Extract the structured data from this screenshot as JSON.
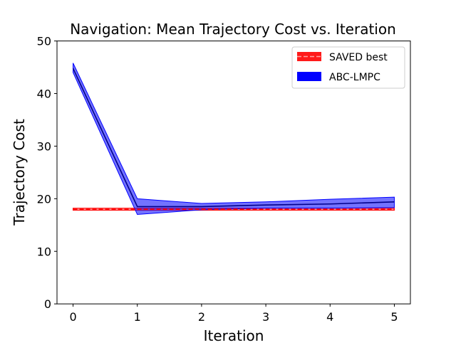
{
  "chart_data": {
    "type": "line",
    "title": "Navigation: Mean Trajectory Cost vs. Iteration",
    "xlabel": "Iteration",
    "ylabel": "Trajectory Cost",
    "xlim": [
      -0.25,
      5.25
    ],
    "ylim": [
      0,
      50
    ],
    "x_ticks": [
      0,
      1,
      2,
      3,
      4,
      5
    ],
    "y_ticks": [
      0,
      10,
      20,
      30,
      40,
      50
    ],
    "legend_position": "top-right",
    "series": [
      {
        "name": "SAVED best",
        "style": "dashed",
        "color": "#ff0000",
        "x": [
          0,
          5
        ],
        "values": [
          18.0,
          18.0
        ],
        "band_lower": [
          17.8,
          17.8
        ],
        "band_upper": [
          18.2,
          18.2
        ]
      },
      {
        "name": "ABC-LMPC",
        "style": "solid",
        "color": "#0000ff",
        "line_color": "#00008b",
        "x": [
          0,
          1,
          2,
          3,
          4,
          5
        ],
        "values": [
          44.8,
          18.5,
          18.5,
          18.8,
          19.0,
          19.4
        ],
        "band_lower": [
          44.0,
          17.0,
          17.9,
          18.2,
          18.2,
          18.3
        ],
        "band_upper": [
          45.8,
          20.0,
          19.1,
          19.4,
          19.9,
          20.3
        ]
      }
    ]
  }
}
